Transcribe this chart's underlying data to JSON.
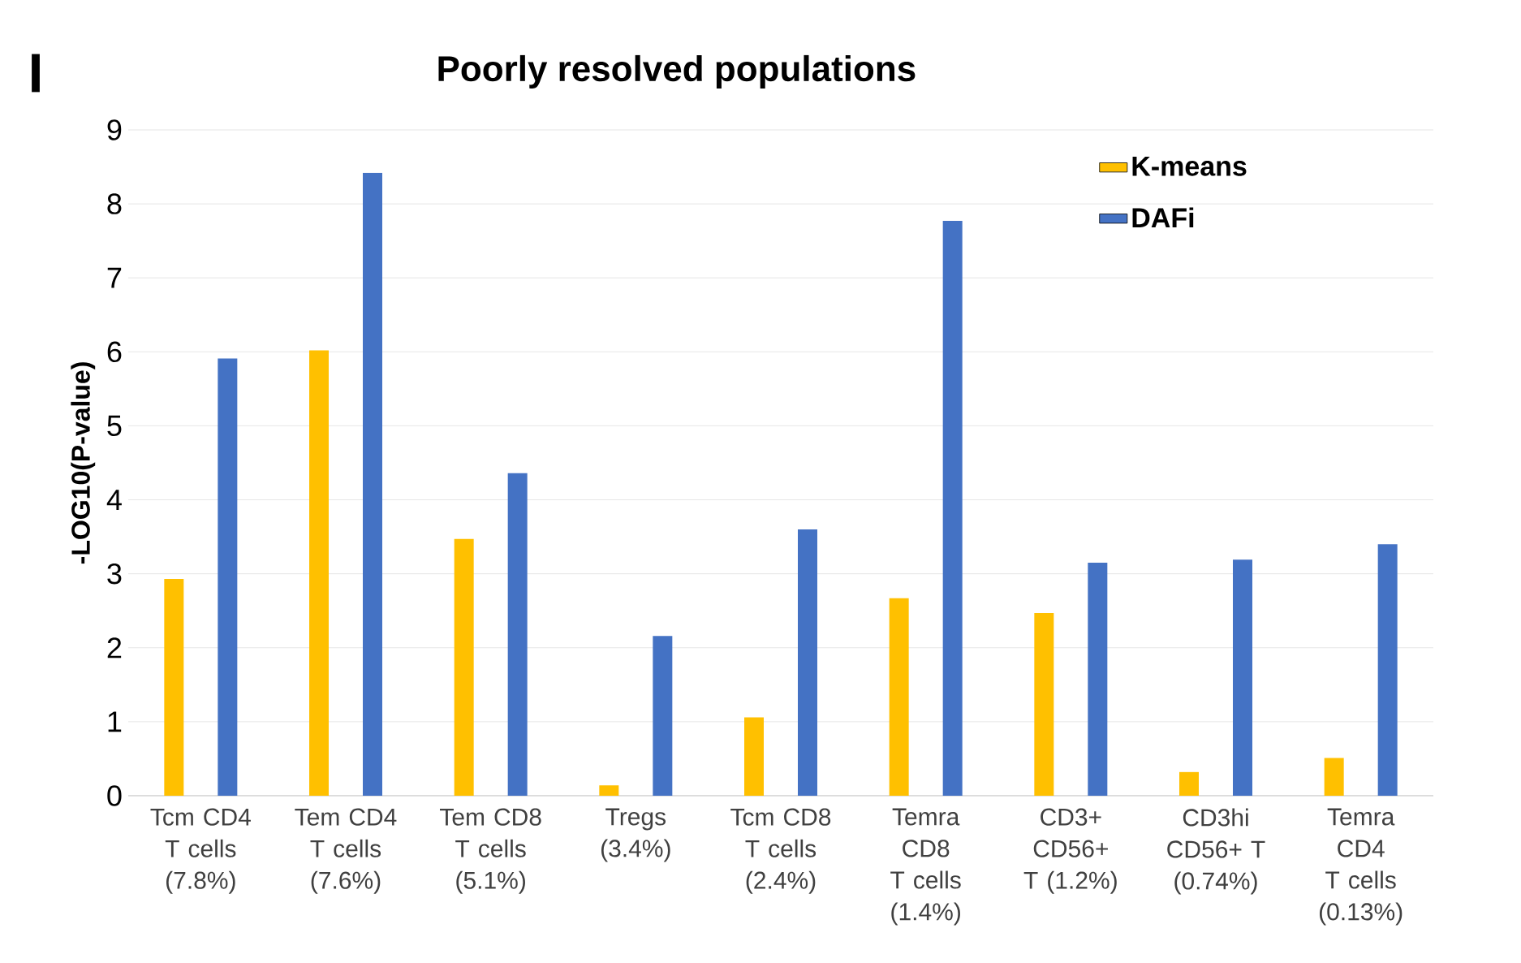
{
  "chart_data": {
    "type": "bar",
    "title": "Poorly resolved populations",
    "ylabel": "-LOG10(P-value)",
    "categories": [
      "Tcm CD4 T cells (7.8%)",
      "Tem CD4 T cells (7.6%)",
      "Tem CD8 T cells (5.1%)",
      "Tregs (3.4%)",
      "Tcm CD8 T cells (2.4%)",
      "Temra CD8 T cells (1.4%)",
      "CD3+ CD56+ T (1.2%)",
      "CD3hi CD56+ T (0.74%)",
      "Temra CD4 T cells (0.13%)"
    ],
    "series": [
      {
        "name": "K-means",
        "color": "#ffc000",
        "values": [
          2.93,
          6.02,
          3.47,
          0.14,
          1.06,
          2.67,
          2.47,
          0.32,
          0.51
        ]
      },
      {
        "name": "DAFi",
        "color": "#4472c4",
        "values": [
          5.91,
          8.42,
          4.36,
          2.16,
          3.6,
          7.77,
          3.15,
          3.19,
          3.4
        ]
      }
    ],
    "ylim": [
      0,
      9
    ],
    "yticks": [
      0,
      1,
      2,
      3,
      4,
      5,
      6,
      7,
      8,
      9
    ],
    "grid": "y",
    "legend": "top right",
    "annotations": [
      "I"
    ]
  }
}
